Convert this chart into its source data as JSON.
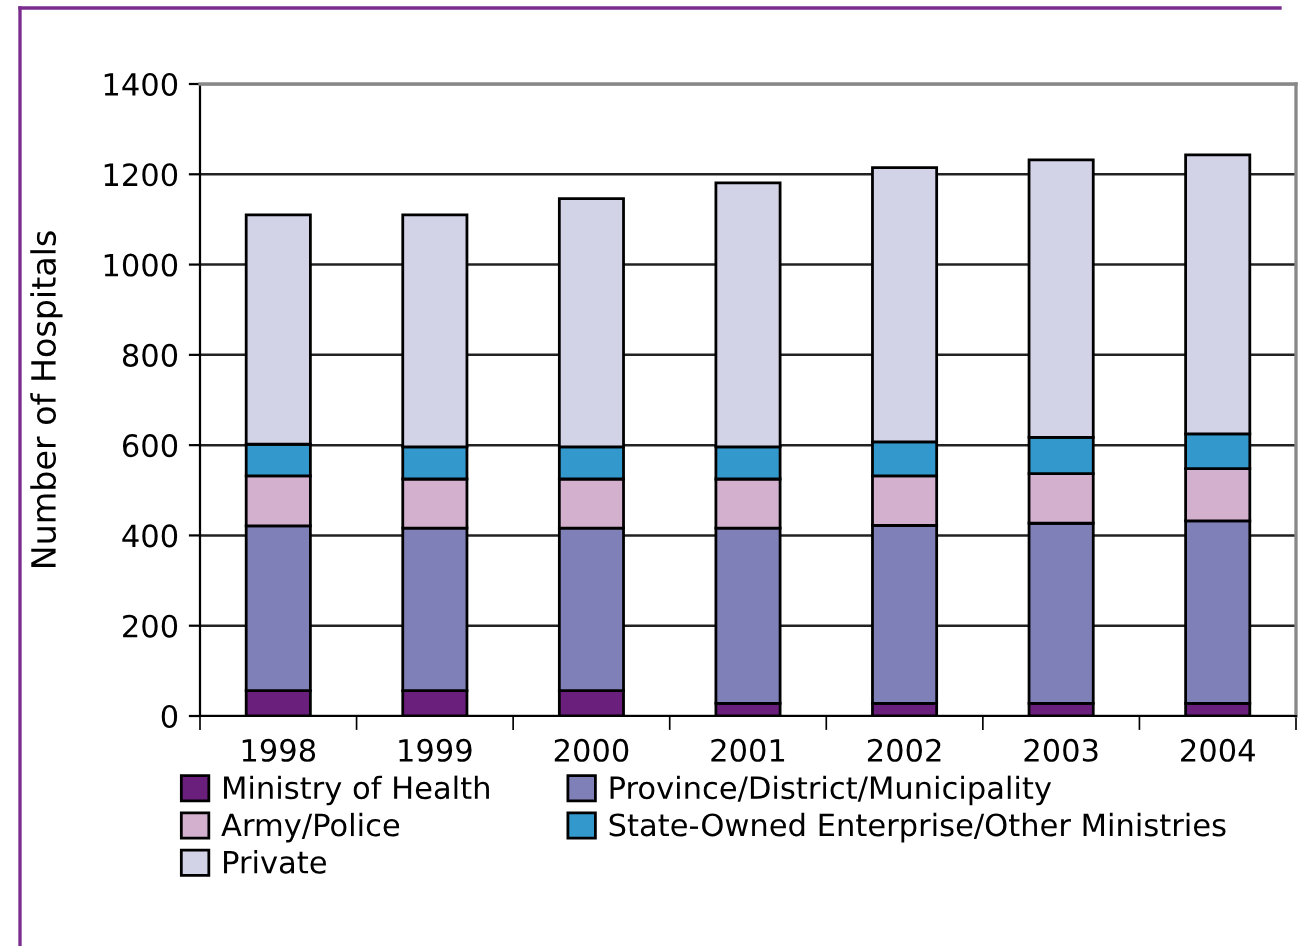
{
  "chart_data": {
    "type": "bar",
    "stacked": true,
    "ylabel": "Number of Hospitals",
    "categories": [
      "1998",
      "1999",
      "2000",
      "2001",
      "2002",
      "2003",
      "2004"
    ],
    "series": [
      {
        "name": "Ministry of Health",
        "color": "#6b1f7c",
        "values": [
          56,
          56,
          56,
          28,
          28,
          28,
          28
        ]
      },
      {
        "name": "Province/District/Municipality",
        "color": "#8080b8",
        "values": [
          365,
          360,
          360,
          388,
          394,
          399,
          404
        ]
      },
      {
        "name": "Army/Police",
        "color": "#d4b0cf",
        "values": [
          111,
          109,
          109,
          109,
          110,
          110,
          116
        ]
      },
      {
        "name": "State-Owned Enterprise/Other Ministries",
        "color": "#3399cc",
        "values": [
          70,
          71,
          71,
          71,
          75,
          80,
          77
        ]
      },
      {
        "name": "Private",
        "color": "#d3d3e8",
        "values": [
          508,
          514,
          550,
          585,
          608,
          615,
          618
        ]
      }
    ],
    "ylim": [
      0,
      1400
    ],
    "yticks": [
      0,
      200,
      400,
      600,
      800,
      1000,
      1200,
      1400
    ],
    "grid": "y",
    "legend": "bottom"
  }
}
